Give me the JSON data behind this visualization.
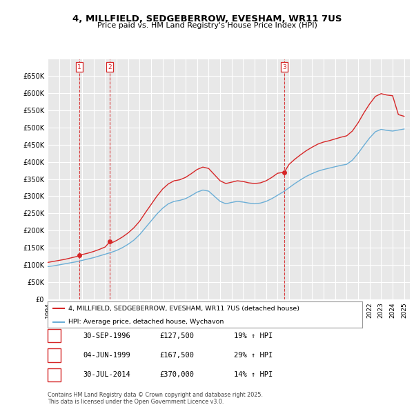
{
  "title": "4, MILLFIELD, SEDGEBERROW, EVESHAM, WR11 7US",
  "subtitle": "Price paid vs. HM Land Registry's House Price Index (HPI)",
  "hpi_color": "#6baed6",
  "price_color": "#d62728",
  "background_color": "#ffffff",
  "plot_bg_color": "#e8e8e8",
  "grid_color": "#ffffff",
  "ylim": [
    0,
    700000
  ],
  "yticks": [
    0,
    50000,
    100000,
    150000,
    200000,
    250000,
    300000,
    350000,
    400000,
    450000,
    500000,
    550000,
    600000,
    650000
  ],
  "ytick_labels": [
    "£0",
    "£50K",
    "£100K",
    "£150K",
    "£200K",
    "£250K",
    "£300K",
    "£350K",
    "£400K",
    "£450K",
    "£500K",
    "£550K",
    "£600K",
    "£650K"
  ],
  "transactions": [
    {
      "label": "1",
      "date": "30-SEP-1996",
      "x": 1996.75,
      "price": 127500
    },
    {
      "label": "2",
      "date": "04-JUN-1999",
      "x": 1999.42,
      "price": 167500
    },
    {
      "label": "3",
      "date": "30-JUL-2014",
      "x": 2014.58,
      "price": 370000
    }
  ],
  "legend_line1": "4, MILLFIELD, SEDGEBERROW, EVESHAM, WR11 7US (detached house)",
  "legend_line2": "HPI: Average price, detached house, Wychavon",
  "footnote": "Contains HM Land Registry data © Crown copyright and database right 2025.\nThis data is licensed under the Open Government Licence v3.0.",
  "table_rows": [
    [
      "1",
      "30-SEP-1996",
      "£127,500",
      "19% ↑ HPI"
    ],
    [
      "2",
      "04-JUN-1999",
      "£167,500",
      "29% ↑ HPI"
    ],
    [
      "3",
      "30-JUL-2014",
      "£370,000",
      "14% ↑ HPI"
    ]
  ],
  "hpi_points": [
    [
      1994.0,
      95000
    ],
    [
      1994.5,
      97000
    ],
    [
      1995.0,
      100000
    ],
    [
      1995.5,
      103000
    ],
    [
      1996.0,
      106000
    ],
    [
      1996.5,
      109000
    ],
    [
      1997.0,
      113000
    ],
    [
      1997.5,
      117000
    ],
    [
      1998.0,
      121000
    ],
    [
      1998.5,
      126000
    ],
    [
      1999.0,
      131000
    ],
    [
      1999.5,
      136000
    ],
    [
      2000.0,
      142000
    ],
    [
      2000.5,
      150000
    ],
    [
      2001.0,
      160000
    ],
    [
      2001.5,
      172000
    ],
    [
      2002.0,
      188000
    ],
    [
      2002.5,
      208000
    ],
    [
      2003.0,
      228000
    ],
    [
      2003.5,
      248000
    ],
    [
      2004.0,
      265000
    ],
    [
      2004.5,
      278000
    ],
    [
      2005.0,
      285000
    ],
    [
      2005.5,
      288000
    ],
    [
      2006.0,
      293000
    ],
    [
      2006.5,
      302000
    ],
    [
      2007.0,
      312000
    ],
    [
      2007.5,
      318000
    ],
    [
      2008.0,
      315000
    ],
    [
      2008.5,
      300000
    ],
    [
      2009.0,
      285000
    ],
    [
      2009.5,
      278000
    ],
    [
      2010.0,
      282000
    ],
    [
      2010.5,
      285000
    ],
    [
      2011.0,
      283000
    ],
    [
      2011.5,
      280000
    ],
    [
      2012.0,
      278000
    ],
    [
      2012.5,
      280000
    ],
    [
      2013.0,
      285000
    ],
    [
      2013.5,
      293000
    ],
    [
      2014.0,
      303000
    ],
    [
      2014.5,
      313000
    ],
    [
      2015.0,
      325000
    ],
    [
      2015.5,
      337000
    ],
    [
      2016.0,
      348000
    ],
    [
      2016.5,
      358000
    ],
    [
      2017.0,
      366000
    ],
    [
      2017.5,
      373000
    ],
    [
      2018.0,
      378000
    ],
    [
      2018.5,
      382000
    ],
    [
      2019.0,
      386000
    ],
    [
      2019.5,
      390000
    ],
    [
      2020.0,
      393000
    ],
    [
      2020.5,
      405000
    ],
    [
      2021.0,
      425000
    ],
    [
      2021.5,
      448000
    ],
    [
      2022.0,
      470000
    ],
    [
      2022.5,
      488000
    ],
    [
      2023.0,
      495000
    ],
    [
      2023.5,
      492000
    ],
    [
      2024.0,
      490000
    ],
    [
      2024.5,
      493000
    ],
    [
      2025.0,
      496000
    ]
  ],
  "red_points": [
    [
      1994.0,
      107000
    ],
    [
      1994.5,
      110000
    ],
    [
      1995.0,
      113000
    ],
    [
      1995.5,
      116000
    ],
    [
      1996.0,
      120000
    ],
    [
      1996.5,
      124000
    ],
    [
      1996.75,
      127500
    ],
    [
      1997.0,
      130000
    ],
    [
      1997.5,
      134000
    ],
    [
      1998.0,
      139000
    ],
    [
      1998.5,
      145000
    ],
    [
      1999.0,
      152000
    ],
    [
      1999.42,
      167500
    ],
    [
      1999.5,
      163000
    ],
    [
      2000.0,
      171000
    ],
    [
      2000.5,
      181000
    ],
    [
      2001.0,
      193000
    ],
    [
      2001.5,
      208000
    ],
    [
      2002.0,
      227000
    ],
    [
      2002.5,
      252000
    ],
    [
      2003.0,
      276000
    ],
    [
      2003.5,
      300000
    ],
    [
      2004.0,
      321000
    ],
    [
      2004.5,
      336000
    ],
    [
      2005.0,
      345000
    ],
    [
      2005.5,
      348000
    ],
    [
      2006.0,
      355000
    ],
    [
      2006.5,
      366000
    ],
    [
      2007.0,
      378000
    ],
    [
      2007.5,
      385000
    ],
    [
      2008.0,
      381000
    ],
    [
      2008.5,
      363000
    ],
    [
      2009.0,
      345000
    ],
    [
      2009.5,
      337000
    ],
    [
      2010.0,
      341000
    ],
    [
      2010.5,
      345000
    ],
    [
      2011.0,
      343000
    ],
    [
      2011.5,
      339000
    ],
    [
      2012.0,
      337000
    ],
    [
      2012.5,
      339000
    ],
    [
      2013.0,
      345000
    ],
    [
      2013.5,
      355000
    ],
    [
      2014.0,
      367000
    ],
    [
      2014.58,
      370000
    ],
    [
      2015.0,
      393000
    ],
    [
      2015.5,
      408000
    ],
    [
      2016.0,
      421000
    ],
    [
      2016.5,
      433000
    ],
    [
      2017.0,
      443000
    ],
    [
      2017.5,
      452000
    ],
    [
      2018.0,
      458000
    ],
    [
      2018.5,
      462000
    ],
    [
      2019.0,
      467000
    ],
    [
      2019.5,
      472000
    ],
    [
      2020.0,
      476000
    ],
    [
      2020.5,
      490000
    ],
    [
      2021.0,
      514000
    ],
    [
      2021.5,
      543000
    ],
    [
      2022.0,
      569000
    ],
    [
      2022.5,
      591000
    ],
    [
      2023.0,
      599000
    ],
    [
      2023.5,
      595000
    ],
    [
      2024.0,
      593000
    ],
    [
      2024.5,
      538000
    ],
    [
      2025.0,
      533000
    ]
  ]
}
